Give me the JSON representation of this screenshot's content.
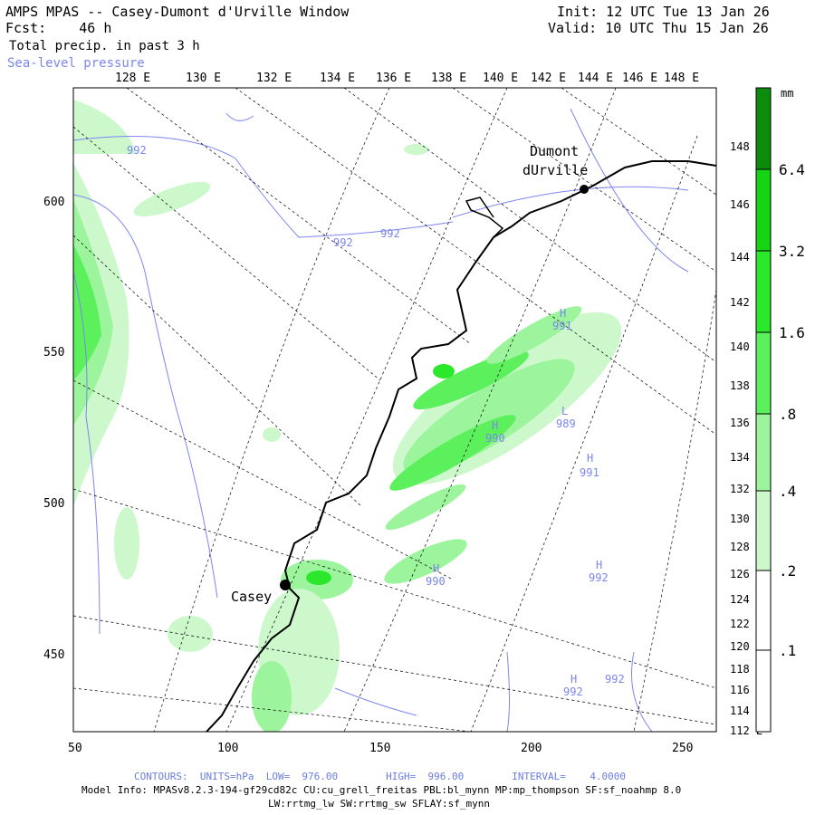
{
  "header": {
    "title": "AMPS MPAS -- Casey-Dumont d'Urville Window",
    "fcst": "Fcst:    46 h",
    "field1": "Total precip. in past 3 h",
    "field2": "Sea-level pressure",
    "init": "Init: 12 UTC Tue 13 Jan 26",
    "valid": "Valid: 10 UTC Thu 15 Jan 26"
  },
  "top_lon_labels": [
    "128 E",
    "130 E",
    "132 E",
    "134 E",
    "136 E",
    "138 E",
    "140 E",
    "142 E",
    "144 E",
    "146 E",
    "148 E"
  ],
  "right_lon_labels": [
    "148 E",
    "146 E",
    "144 E",
    "142 E",
    "140 E",
    "138 E",
    "136 E",
    "134 E",
    "132 E",
    "130 E",
    "128 E",
    "126 E",
    "124 E",
    "122 E",
    "120 E",
    "118 E",
    "116 E",
    "114 E",
    "112 E"
  ],
  "x_axis_ticks": [
    "50",
    "100",
    "150",
    "200",
    "250"
  ],
  "y_axis_ticks": [
    "600",
    "550",
    "500",
    "450"
  ],
  "stations": [
    {
      "name": "Dumont",
      "name2": "dUrville"
    },
    {
      "name": "Casey"
    }
  ],
  "pressure_labels": [
    "992",
    "992",
    "992",
    "H",
    "991",
    "H",
    "990",
    "L",
    "989",
    "H",
    "991",
    "H",
    "990",
    "H",
    "992",
    "H",
    "992",
    "992"
  ],
  "colorbar": {
    "unit": "mm",
    "levels": [
      "6.4",
      "3.2",
      "1.6",
      ".8",
      ".4",
      ".2",
      ".1"
    ],
    "colors": [
      "#0c8c0c",
      "#14d414",
      "#2ce82c",
      "#5cf05c",
      "#9cf49c",
      "#ccf8cc",
      "#ffffff",
      "#ffffff"
    ]
  },
  "footer": {
    "contours": "CONTOURS:  UNITS=hPa  LOW=  976.00        HIGH=  996.00        INTERVAL=    4.0000",
    "model_info": "Model Info: MPASv8.2.3-194-gf29cd82c CU:cu_grell_freitas PBL:bl_mynn MP:mp_thompson SF:sf_noahmp 8.0",
    "physics": "LW:rrtmg_lw SW:rrtmg_sw SFLAY:sf_mynn"
  },
  "colors": {
    "pressure": "#7b86ee",
    "coast": "#000000",
    "grid": "#000000"
  }
}
